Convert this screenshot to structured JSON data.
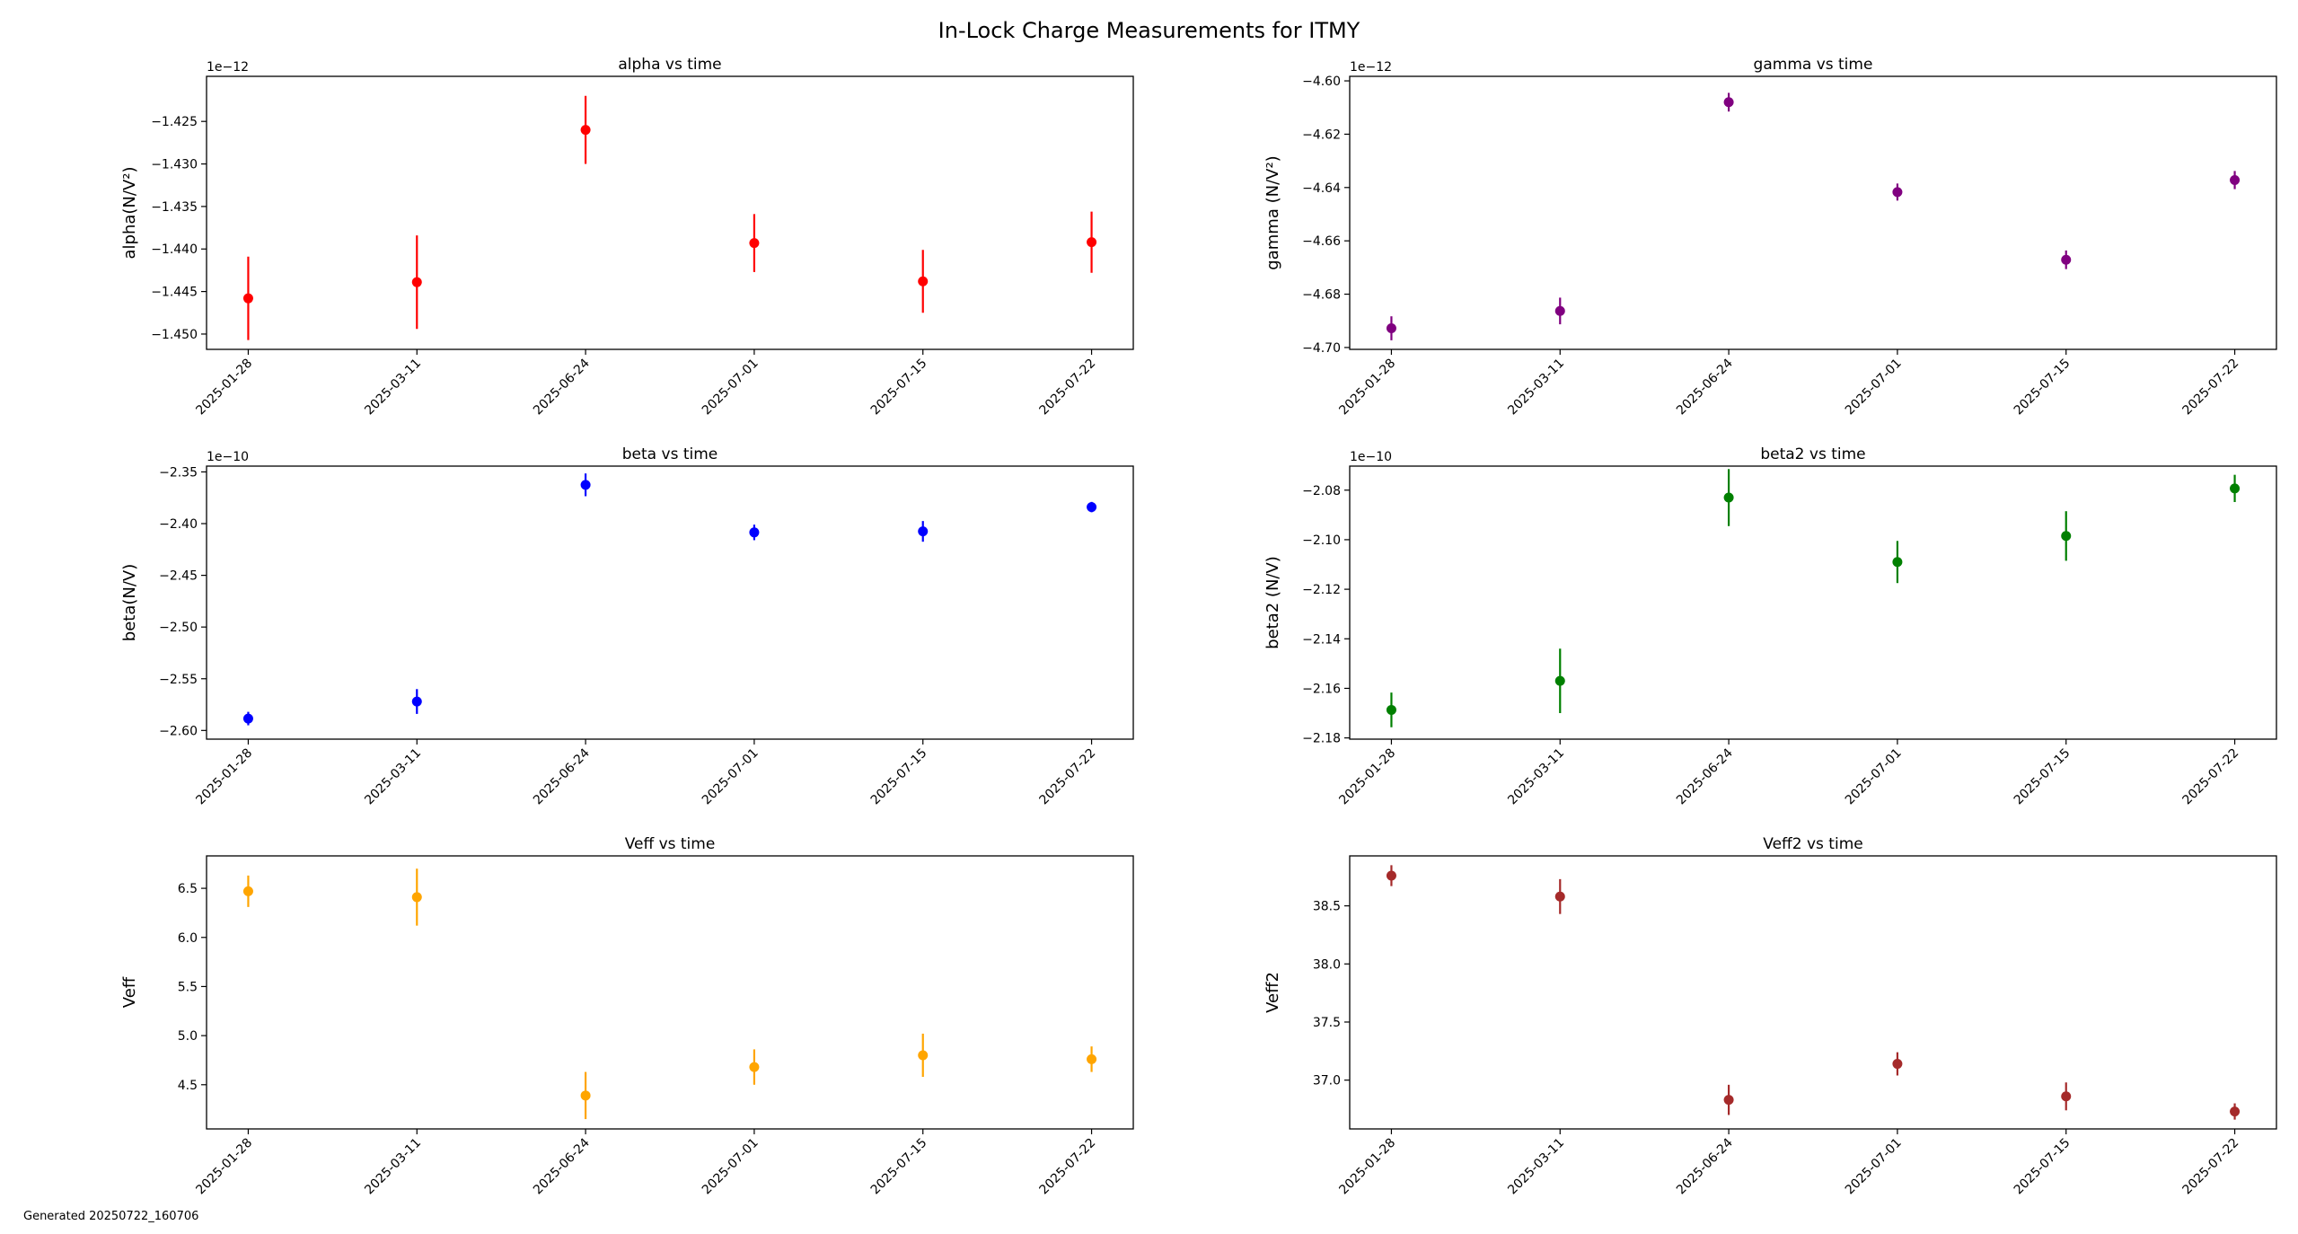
{
  "figure": {
    "title": "In-Lock Charge Measurements for ITMY",
    "footer": "Generated 20250722_160706"
  },
  "chart_data": [
    {
      "type": "scatter",
      "title": "alpha vs time",
      "ylabel": "alpha(N/V²)",
      "offset_label": "1e−12",
      "categories": [
        "2025-01-28",
        "2025-03-11",
        "2025-06-24",
        "2025-07-01",
        "2025-07-15",
        "2025-07-22"
      ],
      "series": [
        {
          "color": "#ff0000",
          "values": [
            -1.4458,
            -1.4439,
            -1.426,
            -1.4393,
            -1.4438,
            -1.4392
          ],
          "errors": [
            0.0049,
            0.0055,
            0.004,
            0.0034,
            0.0037,
            0.0036
          ]
        }
      ],
      "ylim": [
        -1.4518,
        -1.4197
      ],
      "yticks": [
        -1.45,
        -1.445,
        -1.44,
        -1.435,
        -1.43,
        -1.425
      ],
      "ytick_labels": [
        "−1.450",
        "−1.445",
        "−1.440",
        "−1.435",
        "−1.430",
        "−1.425"
      ],
      "grid": false
    },
    {
      "type": "scatter",
      "title": "gamma vs time",
      "ylabel": "gamma (N/V²)",
      "offset_label": "1e−12",
      "categories": [
        "2025-01-28",
        "2025-03-11",
        "2025-06-24",
        "2025-07-01",
        "2025-07-15",
        "2025-07-22"
      ],
      "series": [
        {
          "color": "#800080",
          "values": [
            -4.6928,
            -4.6863,
            -4.608,
            -4.6417,
            -4.6671,
            -4.6372
          ],
          "errors": [
            0.0045,
            0.005,
            0.0035,
            0.0032,
            0.0035,
            0.0034
          ]
        }
      ],
      "ylim": [
        -4.7007,
        -4.5983
      ],
      "yticks": [
        -4.7,
        -4.68,
        -4.66,
        -4.64,
        -4.62,
        -4.6
      ],
      "ytick_labels": [
        "−4.70",
        "−4.68",
        "−4.66",
        "−4.64",
        "−4.62",
        "−4.60"
      ],
      "grid": false
    },
    {
      "type": "scatter",
      "title": "beta vs time",
      "ylabel": "beta(N/V)",
      "offset_label": "1e−10",
      "categories": [
        "2025-01-28",
        "2025-03-11",
        "2025-06-24",
        "2025-07-01",
        "2025-07-15",
        "2025-07-22"
      ],
      "series": [
        {
          "color": "#0000ff",
          "values": [
            -2.5885,
            -2.572,
            -2.3625,
            -2.4085,
            -2.4075,
            -2.384
          ],
          "errors": [
            0.0065,
            0.012,
            0.011,
            0.0075,
            0.01,
            0.005
          ]
        }
      ],
      "ylim": [
        -2.6084,
        -2.3444
      ],
      "yticks": [
        -2.6,
        -2.55,
        -2.5,
        -2.45,
        -2.4,
        -2.35
      ],
      "ytick_labels": [
        "−2.60",
        "−2.55",
        "−2.50",
        "−2.45",
        "−2.40",
        "−2.35"
      ],
      "grid": false
    },
    {
      "type": "scatter",
      "title": "beta2 vs time",
      "ylabel": "beta2 (N/V)",
      "offset_label": "1e−10",
      "categories": [
        "2025-01-28",
        "2025-03-11",
        "2025-06-24",
        "2025-07-01",
        "2025-07-15",
        "2025-07-22"
      ],
      "series": [
        {
          "color": "#008000",
          "values": [
            -2.1687,
            -2.157,
            -2.083,
            -2.109,
            -2.0985,
            -2.0793
          ],
          "errors": [
            0.007,
            0.013,
            0.0115,
            0.0085,
            0.01,
            0.0055
          ]
        }
      ],
      "ylim": [
        -2.1805,
        -2.0703
      ],
      "yticks": [
        -2.18,
        -2.16,
        -2.14,
        -2.12,
        -2.1,
        -2.08
      ],
      "ytick_labels": [
        "−2.18",
        "−2.16",
        "−2.14",
        "−2.12",
        "−2.10",
        "−2.08"
      ],
      "grid": false
    },
    {
      "type": "scatter",
      "title": "Veff vs time",
      "ylabel": "Veff",
      "offset_label": "",
      "categories": [
        "2025-01-28",
        "2025-03-11",
        "2025-06-24",
        "2025-07-01",
        "2025-07-15",
        "2025-07-22"
      ],
      "series": [
        {
          "color": "#ffa500",
          "values": [
            6.47,
            6.41,
            4.39,
            4.68,
            4.8,
            4.76
          ],
          "errors": [
            0.16,
            0.29,
            0.24,
            0.18,
            0.22,
            0.13
          ]
        }
      ],
      "ylim": [
        4.05,
        6.83
      ],
      "yticks": [
        4.5,
        5.0,
        5.5,
        6.0,
        6.5
      ],
      "ytick_labels": [
        "4.5",
        "5.0",
        "5.5",
        "6.0",
        "6.5"
      ],
      "grid": false
    },
    {
      "type": "scatter",
      "title": "Veff2 vs time",
      "ylabel": "Veff2",
      "offset_label": "",
      "categories": [
        "2025-01-28",
        "2025-03-11",
        "2025-06-24",
        "2025-07-01",
        "2025-07-15",
        "2025-07-22"
      ],
      "series": [
        {
          "color": "#a52a2a",
          "values": [
            38.76,
            38.58,
            36.83,
            37.14,
            36.86,
            36.73
          ],
          "errors": [
            0.09,
            0.15,
            0.13,
            0.1,
            0.12,
            0.07
          ]
        }
      ],
      "ylim": [
        36.58,
        38.93
      ],
      "yticks": [
        37.0,
        37.5,
        38.0,
        38.5
      ],
      "ytick_labels": [
        "37.0",
        "37.5",
        "38.0",
        "38.5"
      ],
      "grid": false
    }
  ]
}
